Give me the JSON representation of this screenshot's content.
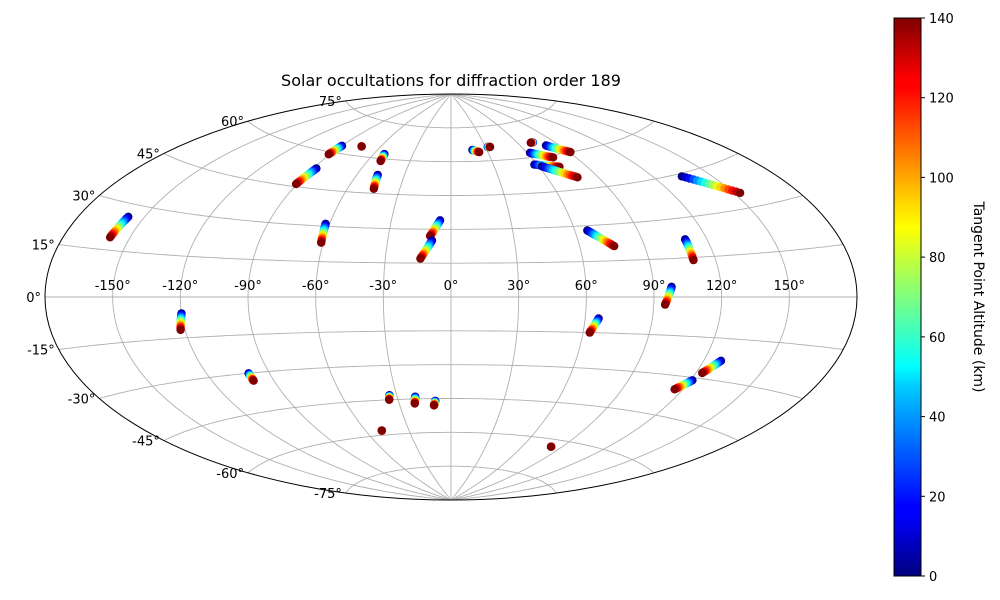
{
  "chart_data": {
    "type": "scatter",
    "projection": "aitoff",
    "title": "Solar occultations for diffraction order 189",
    "grid": true,
    "x_ticks": [
      "-150°",
      "-120°",
      "-90°",
      "-60°",
      "-30°",
      "0°",
      "30°",
      "60°",
      "90°",
      "120°",
      "150°"
    ],
    "y_ticks": [
      "75°",
      "60°",
      "45°",
      "30°",
      "15°",
      "0°",
      "-15°",
      "-30°",
      "-45°",
      "-60°",
      "-75°"
    ],
    "colorbar": {
      "label": "Tangent Point Altitude (km)",
      "min": 0,
      "max": 140,
      "ticks": [
        "0",
        "20",
        "40",
        "60",
        "80",
        "100",
        "120",
        "140"
      ],
      "colormap": "jet"
    },
    "tracks": [
      {
        "lon0": -157.5,
        "lat0": 26,
        "lon1": -159,
        "lat1": 19
      },
      {
        "lon0": -90,
        "lat0": 63,
        "lon1": -91,
        "lat1": 59
      },
      {
        "lon0": -88,
        "lat0": 53,
        "lon1": -90.5,
        "lat1": 46
      },
      {
        "lon0": -75,
        "lat0": 64,
        "lon1": -75,
        "lat1": 64
      },
      {
        "lon0": -52,
        "lat0": 62,
        "lon1": -51,
        "lat1": 59
      },
      {
        "lon0": -47,
        "lat0": 53,
        "lon1": -45,
        "lat1": 47
      },
      {
        "lon0": -62,
        "lat0": 31,
        "lon1": -61,
        "lat1": 23
      },
      {
        "lon0": -5.5,
        "lat0": 34,
        "lon1": -10,
        "lat1": 27
      },
      {
        "lon0": -9,
        "lat0": 25,
        "lon1": -14,
        "lat1": 17
      },
      {
        "lon0": 18,
        "lat0": 65,
        "lon1": 23,
        "lat1": 64
      },
      {
        "lon0": 32,
        "lat0": 66,
        "lon1": 34,
        "lat1": 66
      },
      {
        "lon0": 58,
        "lat0": 57,
        "lon1": 73,
        "lat1": 55
      },
      {
        "lon0": 62,
        "lat0": 62,
        "lon1": 75,
        "lat1": 59
      },
      {
        "lon0": 73,
        "lat0": 66,
        "lon1": 71,
        "lat1": 66
      },
      {
        "lon0": 80,
        "lat0": 64,
        "lon1": 91,
        "lat1": 60
      },
      {
        "lon0": 62,
        "lat0": 56,
        "lon1": 78,
        "lat1": 50
      },
      {
        "lon0": 135,
        "lat0": 44,
        "lon1": 153,
        "lat1": 35
      },
      {
        "lon0": 66,
        "lat0": 28,
        "lon1": 76,
        "lat1": 21
      },
      {
        "lon0": 110,
        "lat0": 22,
        "lon1": 110,
        "lat1": 14
      },
      {
        "lon0": 98,
        "lat0": 4,
        "lon1": 95,
        "lat1": -3
      },
      {
        "lon0": 66,
        "lat0": -9,
        "lon1": 63,
        "lat1": -15
      },
      {
        "lon0": 128,
        "lat0": -23,
        "lon1": 123,
        "lat1": -28
      },
      {
        "lon0": 121,
        "lat0": -31,
        "lon1": 116,
        "lat1": -35
      },
      {
        "lon0": -120,
        "lat0": -6,
        "lon1": -122,
        "lat1": -12
      },
      {
        "lon0": -100,
        "lat0": -30,
        "lon1": -100,
        "lat1": -33
      },
      {
        "lon0": -34,
        "lat0": -43,
        "lon1": -35,
        "lat1": -45
      },
      {
        "lon0": -20,
        "lat0": -44,
        "lon1": -21,
        "lat1": -47
      },
      {
        "lon0": -9,
        "lat0": -46,
        "lon1": -10,
        "lat1": -48
      },
      {
        "lon0": -49,
        "lat0": -58,
        "lon1": -49,
        "lat1": -58
      },
      {
        "lon0": 82,
        "lat0": -63,
        "lon1": 82,
        "lat1": -63
      }
    ]
  }
}
